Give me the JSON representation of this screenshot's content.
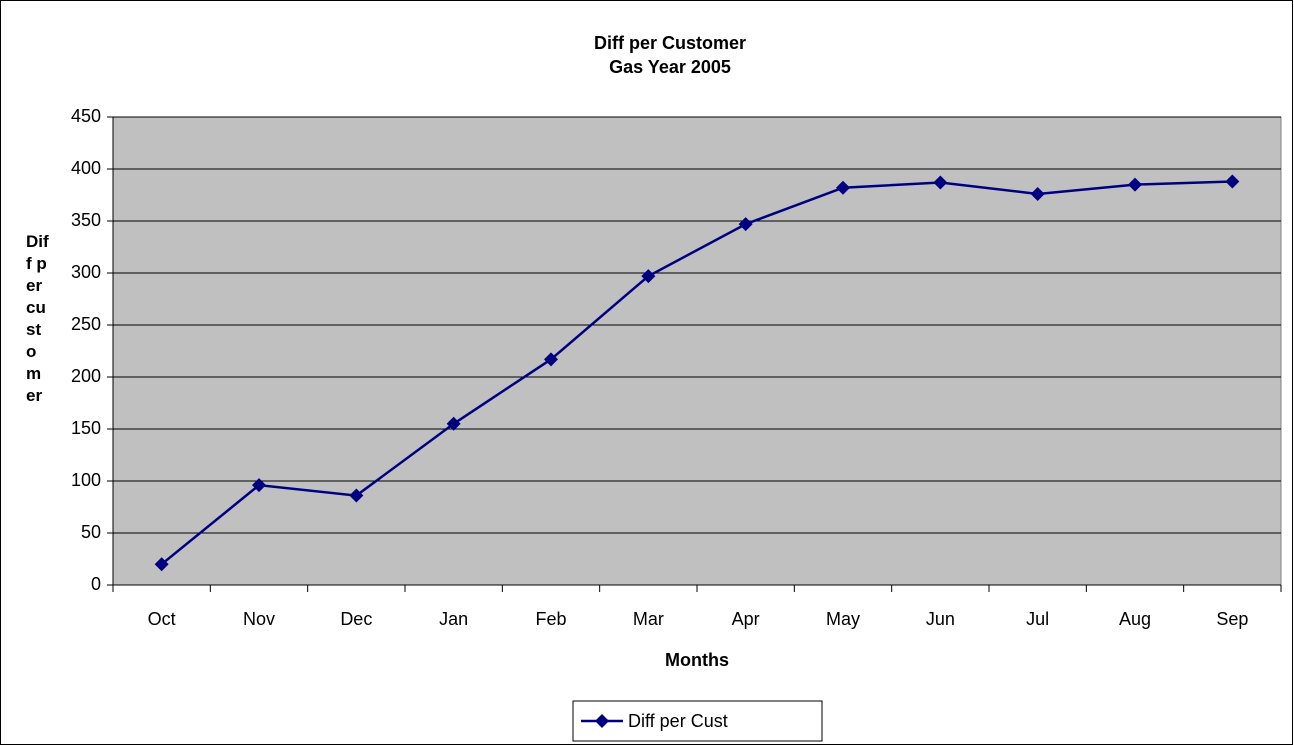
{
  "chart_data": {
    "type": "line",
    "title": "Diff per Customer",
    "subtitle": "Gas Year 2005",
    "x_label": "Months",
    "y_label": "Diff per customer",
    "categories": [
      "Oct",
      "Nov",
      "Dec",
      "Jan",
      "Feb",
      "Mar",
      "Apr",
      "May",
      "Jun",
      "Jul",
      "Aug",
      "Sep"
    ],
    "series": [
      {
        "name": "Diff per Cust",
        "color": "#000080",
        "values": [
          20,
          96,
          86,
          155,
          217,
          297,
          347,
          382,
          387,
          376,
          385,
          388
        ]
      }
    ],
    "ylim": [
      0,
      450
    ],
    "yticks": [
      0,
      50,
      100,
      150,
      200,
      250,
      300,
      350,
      400,
      450
    ],
    "grid": true,
    "plot_background": "#c0c0c0",
    "legend": "bottom"
  }
}
